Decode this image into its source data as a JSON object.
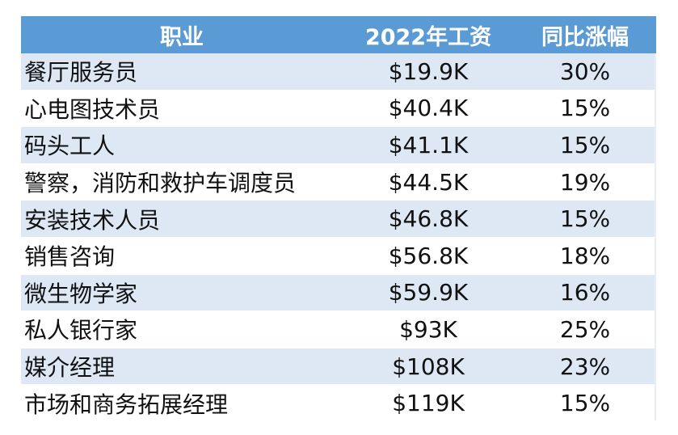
{
  "chart_data": {
    "type": "table",
    "columns": [
      "职业",
      "2022年工资",
      "同比涨幅"
    ],
    "rows": [
      {
        "job": "餐厅服务员",
        "wage": "$19.9K",
        "growth": "30%"
      },
      {
        "job": "心电图技术员",
        "wage": "$40.4K",
        "growth": "15%"
      },
      {
        "job": "码头工人",
        "wage": "$41.1K",
        "growth": "15%"
      },
      {
        "job": "警察，消防和救护车调度员",
        "wage": "$44.5K",
        "growth": "19%"
      },
      {
        "job": "安装技术人员",
        "wage": "$46.8K",
        "growth": "15%"
      },
      {
        "job": "销售咨询",
        "wage": "$56.8K",
        "growth": "18%"
      },
      {
        "job": "微生物学家",
        "wage": "$59.9K",
        "growth": "16%"
      },
      {
        "job": "私人银行家",
        "wage": "$93K",
        "growth": "25%"
      },
      {
        "job": "媒介经理",
        "wage": "$108K",
        "growth": "23%"
      },
      {
        "job": "市场和商务拓展经理",
        "wage": "$119K",
        "growth": "15%"
      }
    ]
  },
  "colors": {
    "header_bg": "#5b9bd5",
    "header_text": "#ffffff",
    "stripe_bg": "#dde8f4",
    "plain_bg": "#ffffff"
  }
}
